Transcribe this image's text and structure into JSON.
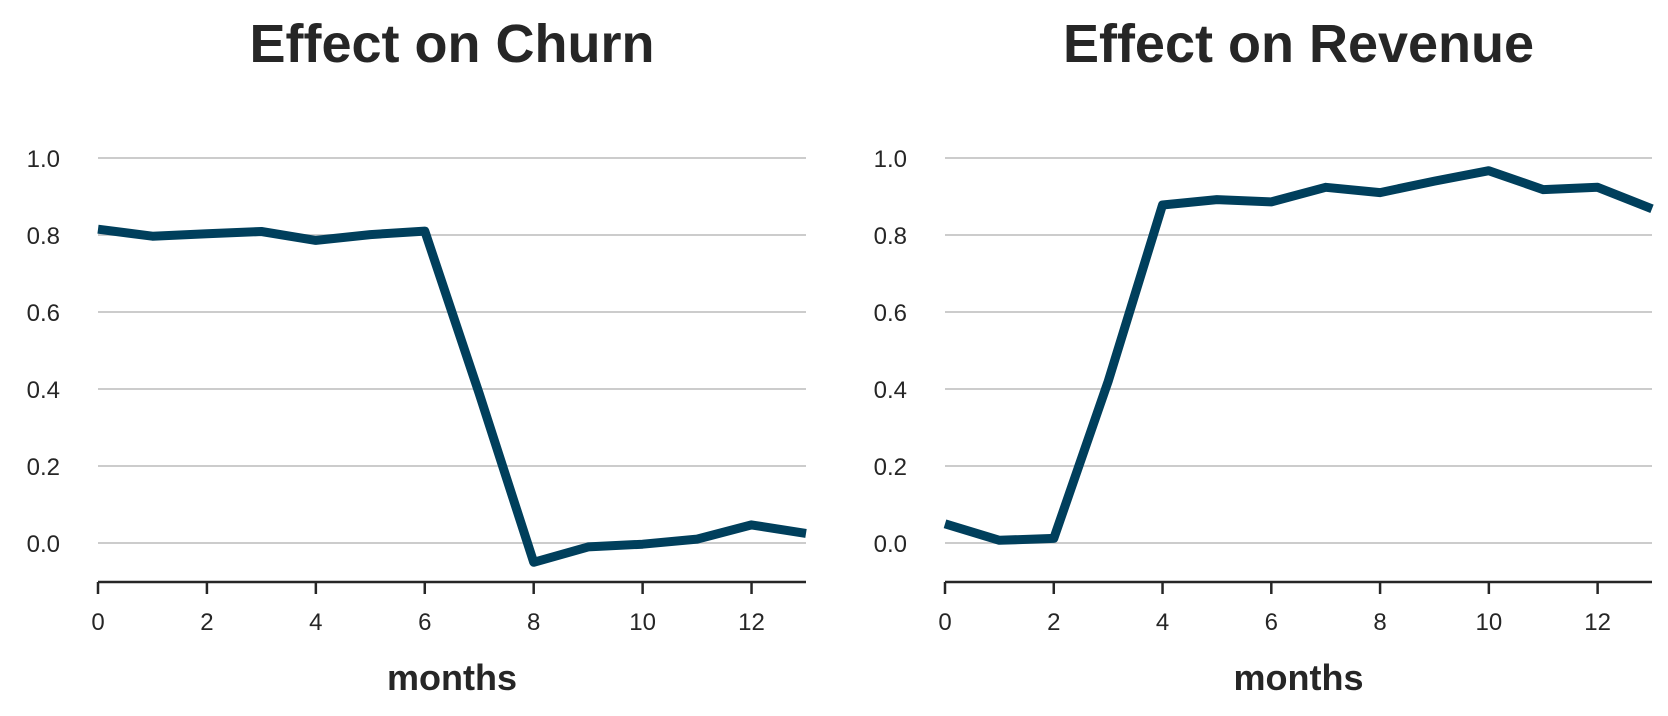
{
  "colors": {
    "line": "#003f5c",
    "text": "#262626",
    "grid": "#cccccc"
  },
  "chart_data": [
    {
      "type": "line",
      "title": "Effect on Churn",
      "xlabel": "months",
      "ylabel": "",
      "xlim": [
        0,
        13
      ],
      "ylim": [
        -0.1,
        1.1
      ],
      "x_ticks": [
        "0",
        "2",
        "4",
        "6",
        "8",
        "10",
        "12"
      ],
      "y_ticks": [
        "0.0",
        "0.2",
        "0.4",
        "0.6",
        "0.8",
        "1.0"
      ],
      "grid": "y",
      "x": [
        0,
        1,
        2,
        3,
        4,
        5,
        6,
        7,
        8,
        9,
        10,
        11,
        12,
        13
      ],
      "values": [
        0.815,
        0.797,
        0.803,
        0.809,
        0.786,
        0.801,
        0.81,
        0.388,
        -0.05,
        -0.01,
        -0.003,
        0.01,
        0.047,
        0.025
      ]
    },
    {
      "type": "line",
      "title": "Effect on Revenue",
      "xlabel": "months",
      "ylabel": "",
      "xlim": [
        0,
        13
      ],
      "ylim": [
        -0.1,
        1.1
      ],
      "x_ticks": [
        "0",
        "2",
        "4",
        "6",
        "8",
        "10",
        "12"
      ],
      "y_ticks": [
        "0.0",
        "0.2",
        "0.4",
        "0.6",
        "0.8",
        "1.0"
      ],
      "grid": "y",
      "x": [
        0,
        1,
        2,
        3,
        4,
        5,
        6,
        7,
        8,
        9,
        10,
        11,
        12,
        13
      ],
      "values": [
        0.05,
        0.007,
        0.012,
        0.42,
        0.878,
        0.892,
        0.886,
        0.924,
        0.91,
        0.94,
        0.967,
        0.918,
        0.924,
        0.868
      ]
    }
  ]
}
